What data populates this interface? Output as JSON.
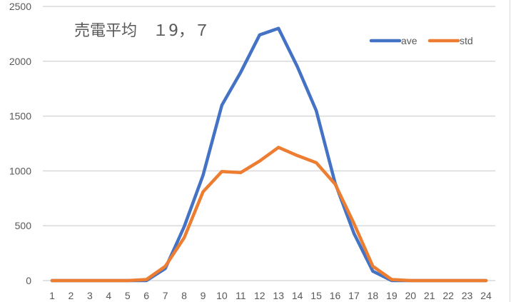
{
  "chart_data": {
    "type": "line",
    "title": "売電平均　１9，７",
    "xlabel": "",
    "ylabel": "",
    "categories": [
      "1",
      "2",
      "3",
      "4",
      "5",
      "6",
      "7",
      "8",
      "9",
      "10",
      "11",
      "12",
      "13",
      "14",
      "15",
      "16",
      "17",
      "18",
      "19",
      "20",
      "21",
      "22",
      "23",
      "24"
    ],
    "yticks": [
      0,
      500,
      1000,
      1500,
      2000,
      2500
    ],
    "ylim": [
      0,
      2500
    ],
    "grid": true,
    "legend_position": "top-right",
    "series": [
      {
        "name": "ave",
        "color": "#4472c4",
        "values": [
          0,
          0,
          0,
          0,
          0,
          0,
          110,
          490,
          960,
          1600,
          1900,
          2240,
          2300,
          1950,
          1550,
          890,
          430,
          85,
          0,
          0,
          0,
          0,
          0,
          0
        ]
      },
      {
        "name": "std",
        "color": "#ed7d31",
        "values": [
          0,
          0,
          0,
          0,
          0,
          10,
          130,
          390,
          810,
          995,
          985,
          1090,
          1215,
          1140,
          1075,
          880,
          520,
          130,
          10,
          0,
          0,
          0,
          0,
          0
        ]
      }
    ]
  },
  "colors": {
    "gridline": "#d9d9d9",
    "text": "#595959"
  }
}
